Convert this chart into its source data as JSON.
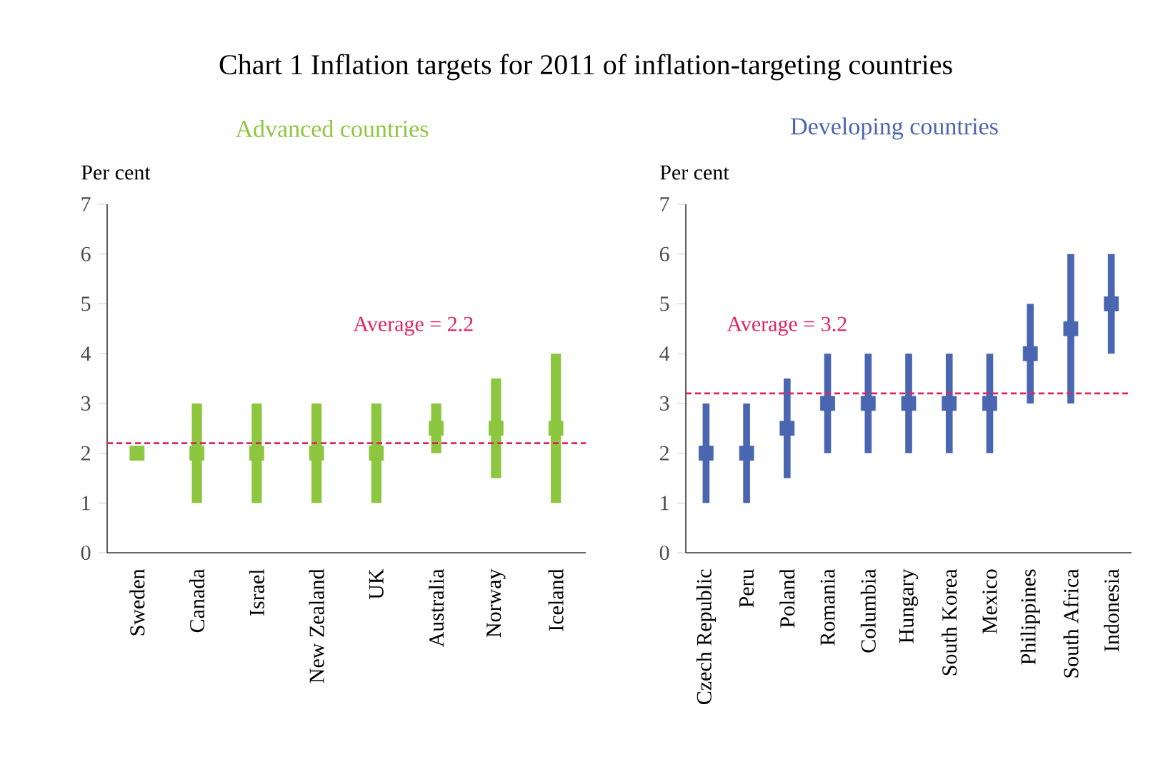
{
  "chart_data": [
    {
      "type": "bar",
      "title": "Chart 1  Inflation targets for 2011 of  inflation-targeting countries",
      "subtitle": "Advanced countries",
      "ylabel": "Per cent",
      "categories": [
        "Sweden",
        "Canada",
        "Israel",
        "New Zealand",
        "UK",
        "Australia",
        "Norway",
        "Iceland"
      ],
      "ylim": [
        0,
        7
      ],
      "yticks": [
        0,
        1,
        2,
        3,
        4,
        5,
        6,
        7
      ],
      "series": [
        {
          "color": "#8dc63f",
          "base": [
            null,
            1,
            1,
            1,
            1,
            2,
            1.5,
            1
          ],
          "values": [
            null,
            2,
            2,
            2,
            2,
            1,
            2,
            3
          ]
        },
        {
          "type": "scatter",
          "color": "#8dc63f",
          "marker": "square",
          "x": [
            "Sweden",
            "Canada",
            "Israel",
            "New Zealand",
            "UK",
            "Australia",
            "Norway",
            "Iceland"
          ],
          "values": [
            2,
            2,
            2,
            2,
            2,
            2.5,
            2.5,
            2.5
          ]
        }
      ],
      "ref_lines": [
        {
          "axis": "y",
          "value": 2.2,
          "label": "Average = 2.2",
          "color": "#e0245e",
          "line_style": "dashed"
        }
      ]
    },
    {
      "type": "bar",
      "subtitle": "Developing countries",
      "ylabel": "Per cent",
      "categories": [
        "Czech Republic",
        "Peru",
        "Poland",
        "Romania",
        "Columbia",
        "Hungary",
        "South Korea",
        "Mexico",
        "Philippines",
        "South Africa",
        "Indonesia"
      ],
      "ylim": [
        0,
        7
      ],
      "yticks": [
        0,
        1,
        2,
        3,
        4,
        5,
        6,
        7
      ],
      "series": [
        {
          "color": "#4a66b0",
          "base": [
            1,
            1,
            1.5,
            2,
            2,
            2,
            2,
            2,
            3,
            3,
            4
          ],
          "values": [
            2,
            2,
            2,
            2,
            2,
            2,
            2,
            2,
            2,
            3,
            2
          ]
        },
        {
          "type": "scatter",
          "color": "#4a66b0",
          "marker": "square",
          "x": [
            "Czech Republic",
            "Peru",
            "Poland",
            "Romania",
            "Columbia",
            "Hungary",
            "South Korea",
            "Mexico",
            "Philippines",
            "South Africa",
            "Indonesia"
          ],
          "values": [
            2,
            2,
            2.5,
            3,
            3,
            3,
            3,
            3,
            4,
            4.5,
            5
          ]
        }
      ],
      "ref_lines": [
        {
          "axis": "y",
          "value": 3.2,
          "label": "Average  = 3.2",
          "color": "#e0245e",
          "line_style": "dashed"
        }
      ]
    }
  ]
}
